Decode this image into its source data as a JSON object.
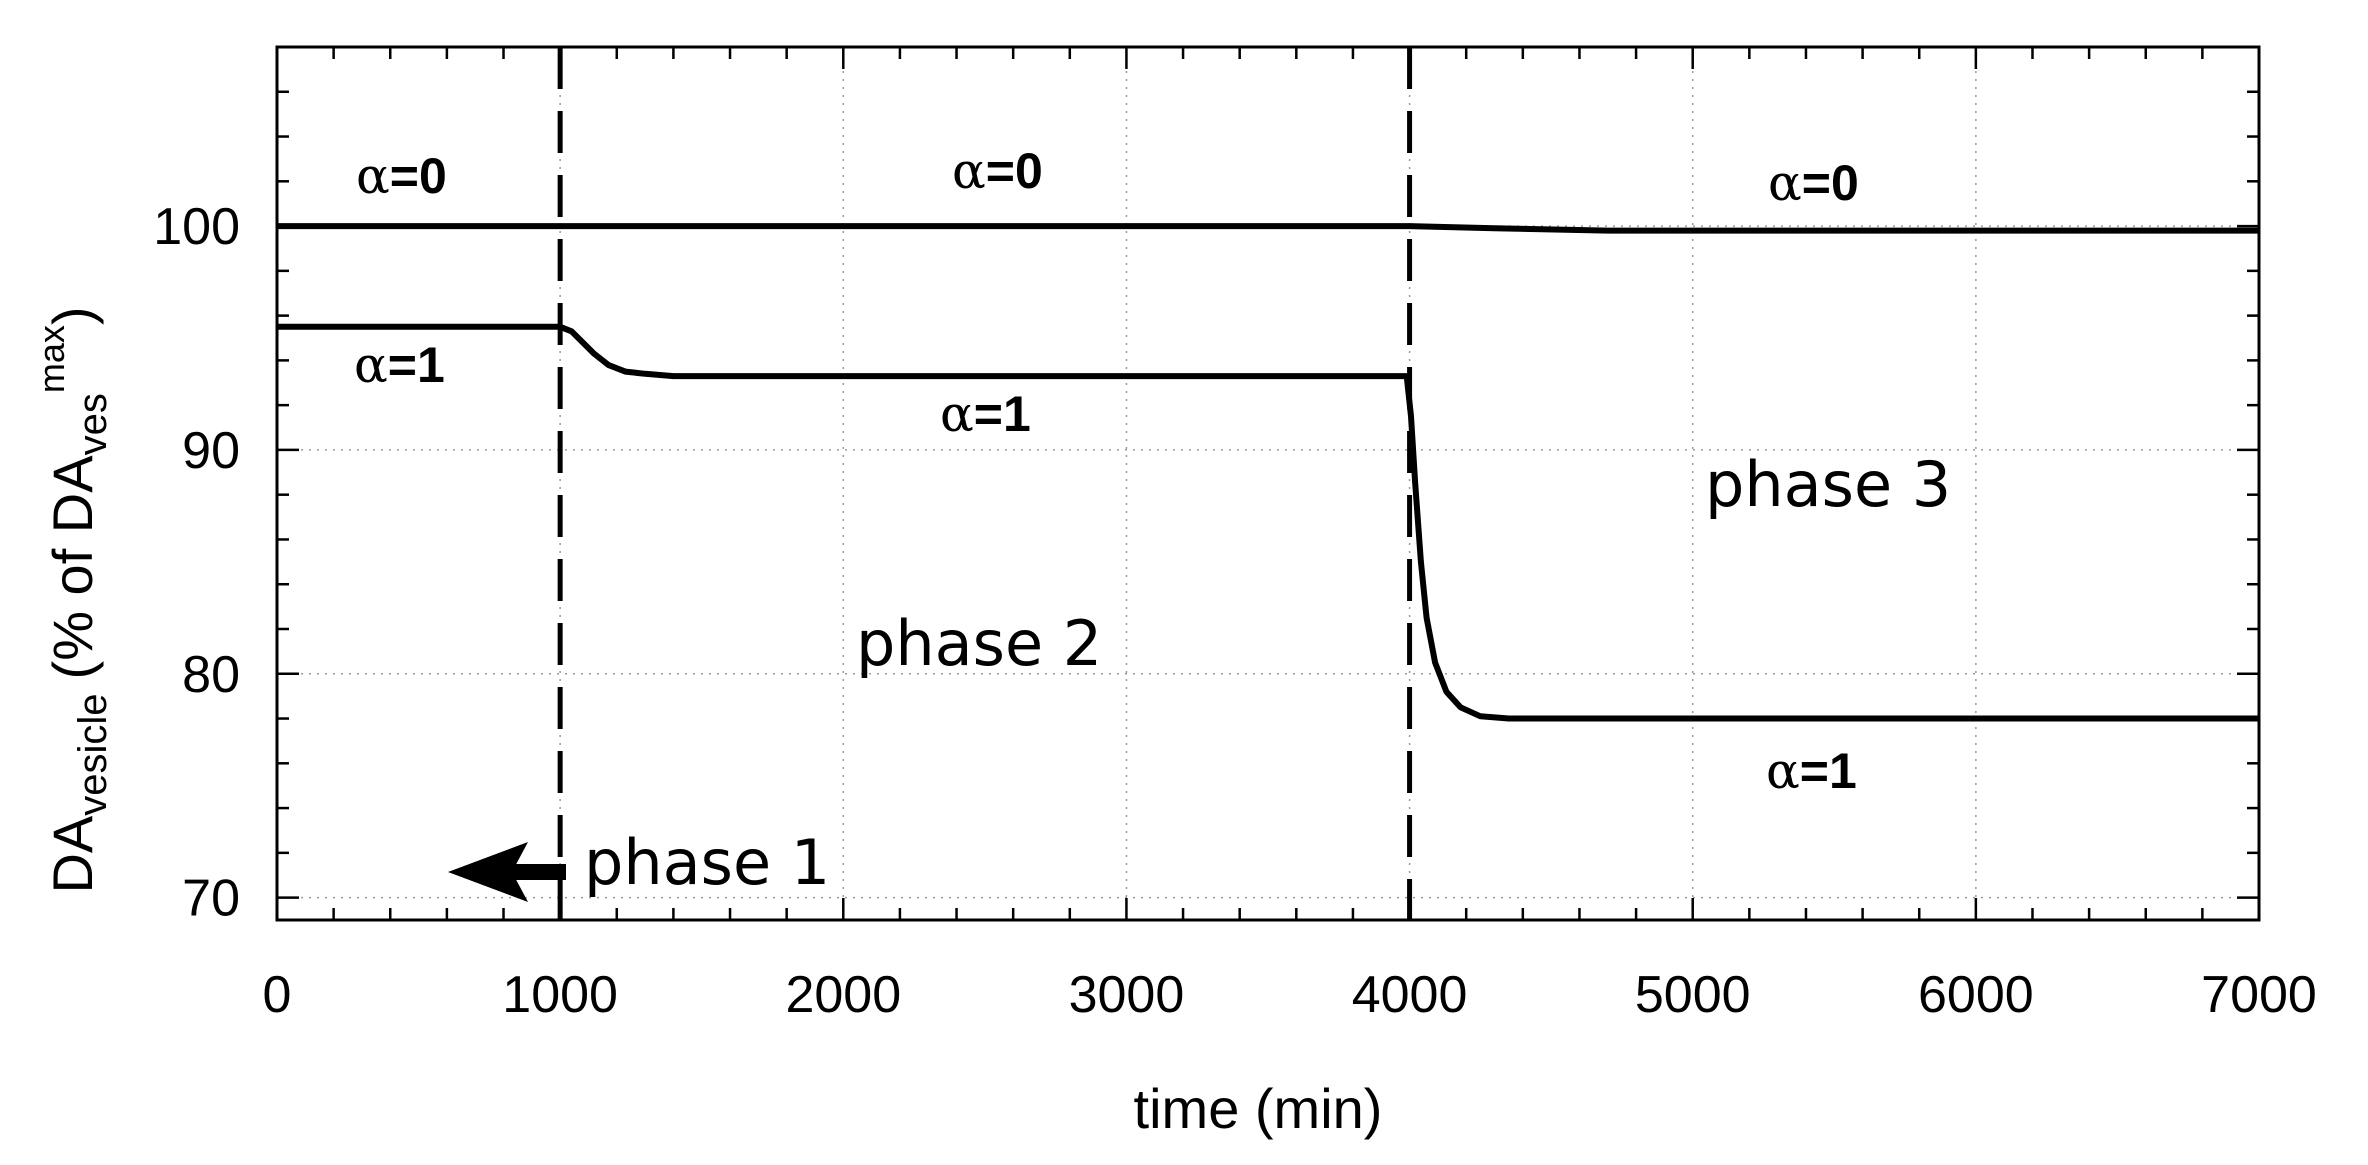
{
  "chart_data": {
    "type": "line",
    "xlabel": "time (min)",
    "ylabel": {
      "main": "DA",
      "main_sub": "vesicle",
      "paren_open": "(% of DA",
      "paren_sub": "ves",
      "paren_sup": "max",
      "paren_close": ")"
    },
    "xlim": [
      0,
      7000
    ],
    "ylim": [
      69,
      108
    ],
    "x_ticks": [
      0,
      1000,
      2000,
      3000,
      4000,
      5000,
      6000,
      7000
    ],
    "x_tick_labels": [
      "0",
      "1000",
      "2000",
      "3000",
      "4000",
      "5000",
      "6000",
      "7000"
    ],
    "y_ticks": [
      70,
      80,
      90,
      100
    ],
    "y_tick_labels": [
      "70",
      "80",
      "90",
      "100"
    ],
    "grid": true,
    "phase_boundaries": [
      1000,
      4000
    ],
    "series": [
      {
        "label_alpha": "α",
        "label_value": "=0",
        "points": [
          [
            0,
            100
          ],
          [
            1000,
            100
          ],
          [
            1500,
            100
          ],
          [
            3000,
            100
          ],
          [
            4000,
            100
          ],
          [
            4300,
            99.9
          ],
          [
            4700,
            99.8
          ],
          [
            5200,
            99.8
          ],
          [
            7000,
            99.8
          ]
        ]
      },
      {
        "label_alpha": "α",
        "label_value": "=1",
        "points": [
          [
            0,
            95.5
          ],
          [
            1000,
            95.5
          ],
          [
            1040,
            95.3
          ],
          [
            1080,
            94.8
          ],
          [
            1120,
            94.3
          ],
          [
            1170,
            93.8
          ],
          [
            1230,
            93.5
          ],
          [
            1300,
            93.4
          ],
          [
            1400,
            93.3
          ],
          [
            2000,
            93.3
          ],
          [
            3000,
            93.3
          ],
          [
            3990,
            93.3
          ],
          [
            4005,
            91.5
          ],
          [
            4020,
            88.5
          ],
          [
            4040,
            85.0
          ],
          [
            4060,
            82.5
          ],
          [
            4090,
            80.5
          ],
          [
            4130,
            79.2
          ],
          [
            4180,
            78.5
          ],
          [
            4250,
            78.1
          ],
          [
            4350,
            78.0
          ],
          [
            5000,
            78.0
          ],
          [
            7000,
            78.0
          ]
        ]
      }
    ],
    "annotations": {
      "phase1": "phase 1",
      "phase2": "phase 2",
      "phase3": "phase 3"
    }
  }
}
